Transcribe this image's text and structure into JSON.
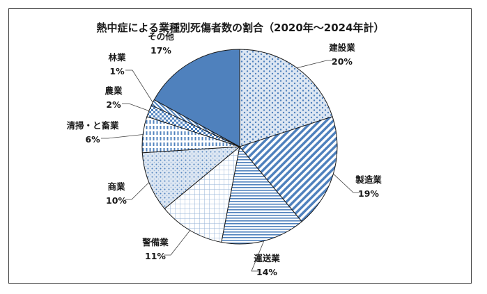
{
  "chart_data": {
    "type": "pie",
    "title": "熱中症による業種別死傷者数の割合（2020年～2024年計）",
    "slices": [
      {
        "label": "建設業",
        "value": 20,
        "value_label": "20%",
        "color": "#4f81bd",
        "pattern": "hex-dots"
      },
      {
        "label": "製造業",
        "value": 19,
        "value_label": "19%",
        "color": "#4f81bd",
        "pattern": "diagonal-stripes"
      },
      {
        "label": "運送業",
        "value": 14,
        "value_label": "14%",
        "color": "#4f81bd",
        "pattern": "horizontal-lines"
      },
      {
        "label": "警備業",
        "value": 11,
        "value_label": "11%",
        "color": "#4f81bd",
        "pattern": "grid"
      },
      {
        "label": "商業",
        "value": 10,
        "value_label": "10%",
        "color": "#4f81bd",
        "pattern": "dotted-grid"
      },
      {
        "label": "清掃・と畜業",
        "value": 6,
        "value_label": "6%",
        "color": "#4f81bd",
        "pattern": "dashed-vertical"
      },
      {
        "label": "農業",
        "value": 2,
        "value_label": "2%",
        "color": "#4f81bd",
        "pattern": "checker"
      },
      {
        "label": "林業",
        "value": 1,
        "value_label": "1%",
        "color": "#4f81bd",
        "pattern": "stripes"
      },
      {
        "label": "その他",
        "value": 17,
        "value_label": "17%",
        "color": "#4f81bd",
        "pattern": "solid"
      }
    ],
    "start_angle_deg": 0,
    "direction": "clockwise",
    "legend": "none",
    "data_labels": "outside-with-leader-lines"
  }
}
